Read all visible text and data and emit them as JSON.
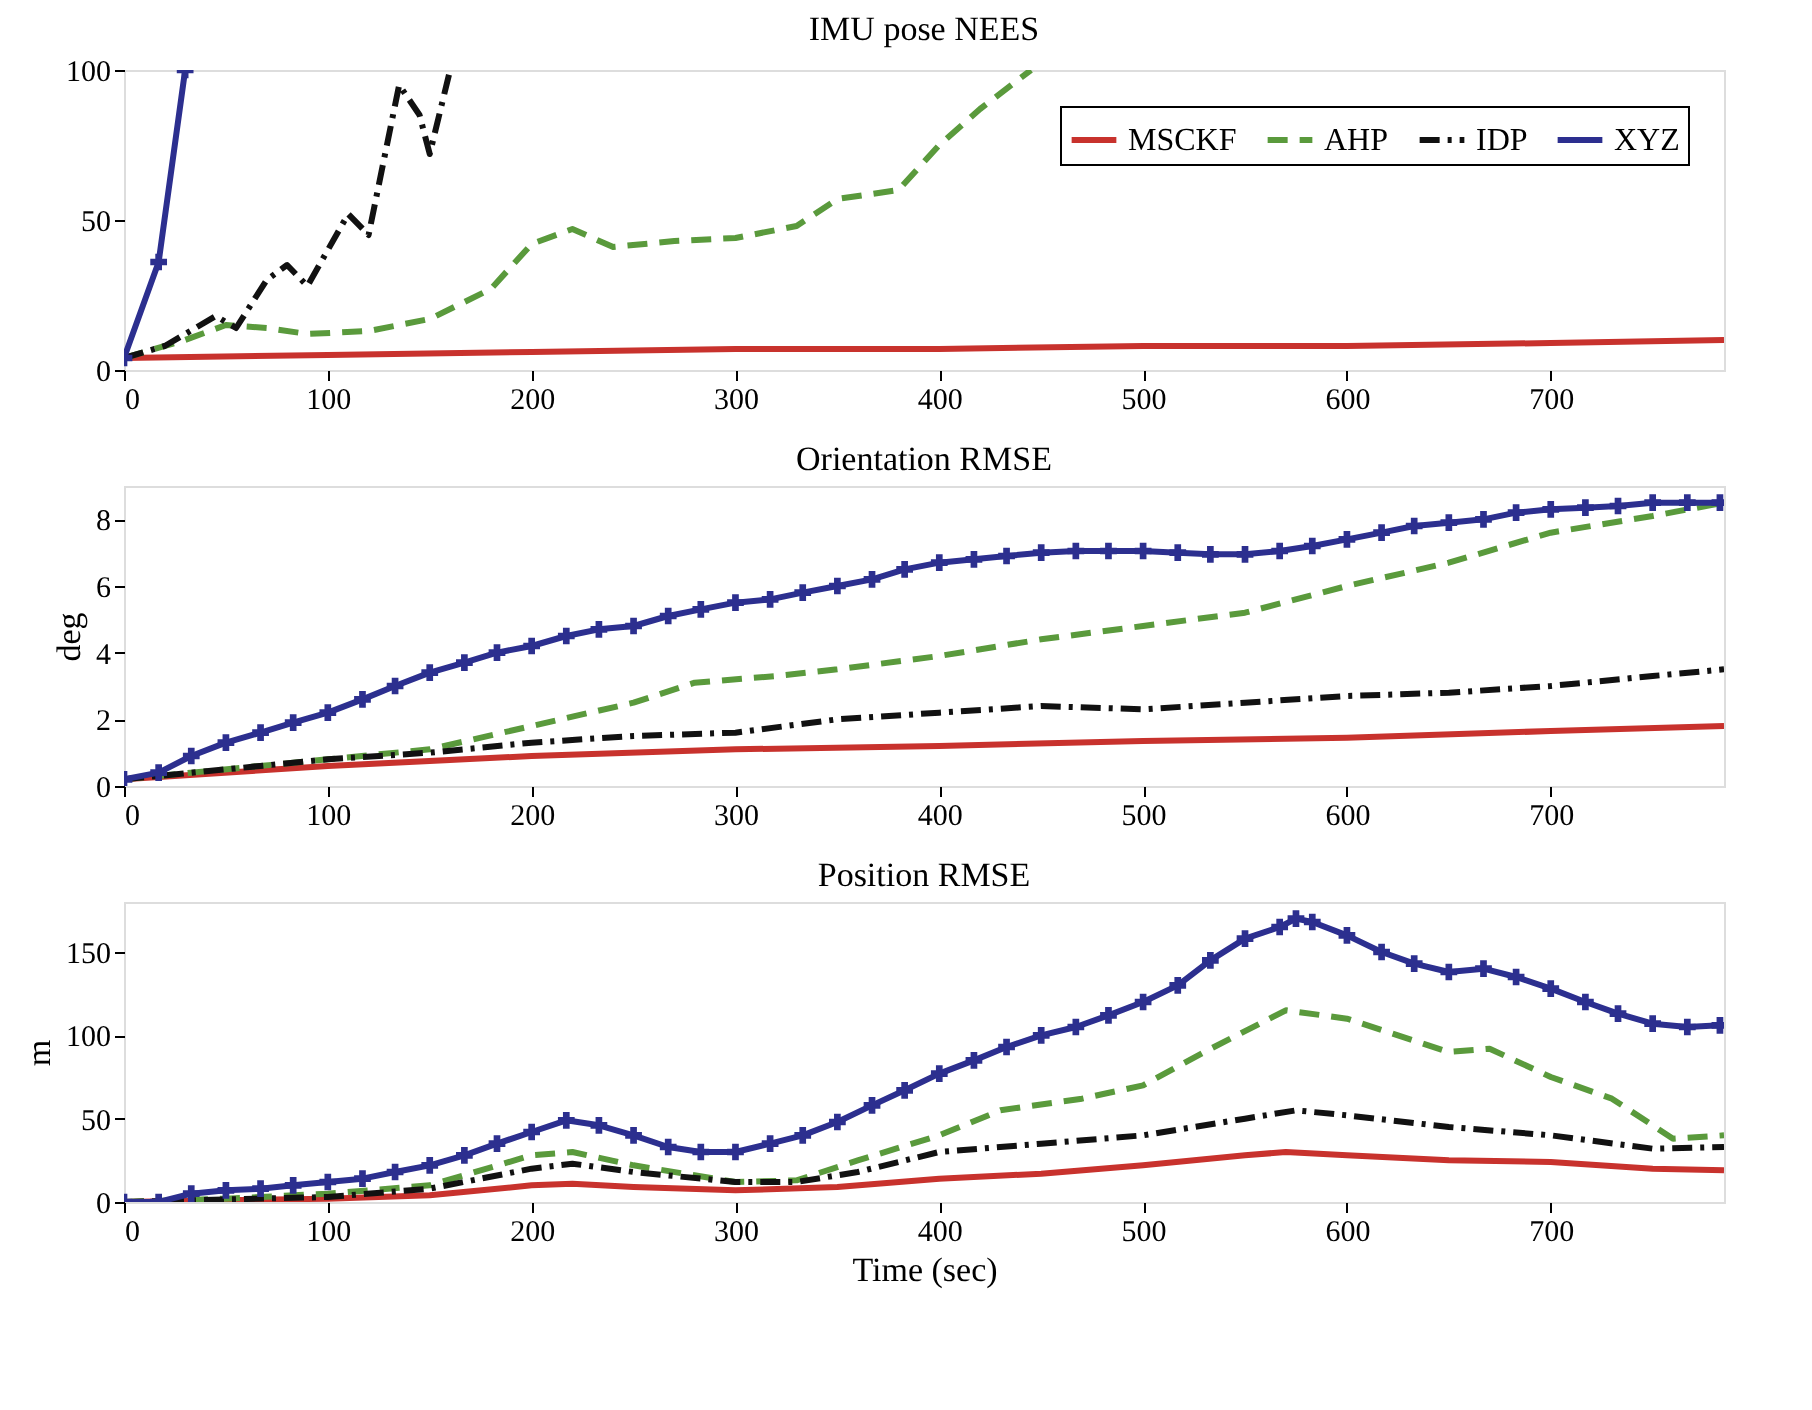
{
  "chart_data": [
    {
      "type": "line",
      "title": "IMU pose NEES",
      "xlim": [
        0,
        785
      ],
      "xticks": [
        0,
        100,
        200,
        300,
        400,
        500,
        600,
        700
      ],
      "ylim": [
        0,
        100
      ],
      "yticks": [
        0,
        50,
        100
      ],
      "legend": "top right",
      "series": [
        {
          "name": "MSCKF",
          "color": "#c8322d",
          "line_style": "solid",
          "x": [
            0,
            100,
            200,
            300,
            400,
            500,
            600,
            700,
            785
          ],
          "values": [
            4,
            5,
            6,
            7,
            7,
            8,
            8,
            9,
            10
          ]
        },
        {
          "name": "AHP",
          "color": "#5a9a3c",
          "line_style": "dashed",
          "x": [
            0,
            30,
            50,
            70,
            90,
            120,
            150,
            180,
            200,
            220,
            240,
            270,
            300,
            330,
            350,
            380,
            400,
            420,
            445
          ],
          "values": [
            4,
            10,
            15,
            14,
            12,
            13,
            17,
            27,
            42,
            47,
            41,
            43,
            44,
            48,
            57,
            60,
            75,
            87,
            100
          ]
        },
        {
          "name": "IDP",
          "color": "#111111",
          "line_style": "dashdot",
          "x": [
            0,
            20,
            45,
            55,
            70,
            80,
            90,
            110,
            120,
            135,
            145,
            150,
            160
          ],
          "values": [
            4,
            8,
            18,
            14,
            30,
            35,
            28,
            52,
            45,
            95,
            85,
            72,
            100
          ]
        },
        {
          "name": "XYZ",
          "color": "#2c2f8f",
          "line_style": "solid",
          "marker": "cross",
          "x": [
            0,
            17,
            30
          ],
          "values": [
            4,
            36,
            100
          ]
        }
      ]
    },
    {
      "type": "line",
      "title": "Orientation RMSE",
      "ylabel": "deg",
      "xlim": [
        0,
        785
      ],
      "xticks": [
        0,
        100,
        200,
        300,
        400,
        500,
        600,
        700
      ],
      "ylim": [
        0,
        9
      ],
      "yticks": [
        0,
        2,
        4,
        6,
        8
      ],
      "series": [
        {
          "color": "#c8322d",
          "line_style": "solid",
          "x": [
            0,
            100,
            200,
            300,
            400,
            500,
            600,
            700,
            785
          ],
          "values": [
            0.2,
            0.6,
            0.9,
            1.1,
            1.2,
            1.35,
            1.45,
            1.65,
            1.8
          ]
        },
        {
          "color": "#5a9a3c",
          "line_style": "dashed",
          "x": [
            0,
            100,
            150,
            200,
            250,
            280,
            320,
            350,
            400,
            450,
            500,
            550,
            600,
            650,
            700,
            750,
            785
          ],
          "values": [
            0.2,
            0.8,
            1.1,
            1.8,
            2.5,
            3.1,
            3.3,
            3.5,
            3.9,
            4.4,
            4.8,
            5.2,
            6.0,
            6.7,
            7.6,
            8.1,
            8.5
          ]
        },
        {
          "color": "#111111",
          "line_style": "dashdot",
          "x": [
            0,
            100,
            150,
            200,
            250,
            300,
            350,
            400,
            450,
            500,
            550,
            600,
            650,
            700,
            750,
            785
          ],
          "values": [
            0.2,
            0.8,
            1.0,
            1.3,
            1.5,
            1.6,
            2.0,
            2.2,
            2.4,
            2.3,
            2.5,
            2.7,
            2.8,
            3.0,
            3.3,
            3.5
          ]
        },
        {
          "color": "#2c2f8f",
          "line_style": "solid",
          "marker": "cross",
          "x": [
            0,
            17,
            33,
            50,
            67,
            83,
            100,
            117,
            133,
            150,
            167,
            183,
            200,
            217,
            233,
            250,
            267,
            283,
            300,
            317,
            333,
            350,
            367,
            383,
            400,
            417,
            433,
            450,
            467,
            483,
            500,
            517,
            533,
            550,
            567,
            583,
            600,
            617,
            633,
            650,
            667,
            683,
            700,
            717,
            733,
            750,
            767,
            783
          ],
          "values": [
            0.2,
            0.4,
            0.9,
            1.3,
            1.6,
            1.9,
            2.2,
            2.6,
            3.0,
            3.4,
            3.7,
            4.0,
            4.2,
            4.5,
            4.7,
            4.8,
            5.1,
            5.3,
            5.5,
            5.6,
            5.8,
            6.0,
            6.2,
            6.5,
            6.7,
            6.8,
            6.9,
            7.0,
            7.05,
            7.05,
            7.05,
            7.0,
            6.95,
            6.95,
            7.05,
            7.2,
            7.4,
            7.6,
            7.8,
            7.9,
            8.0,
            8.2,
            8.3,
            8.35,
            8.4,
            8.5,
            8.5,
            8.5
          ]
        }
      ]
    },
    {
      "type": "line",
      "title": "Position RMSE",
      "ylabel": "m",
      "xlabel": "Time (sec)",
      "xlim": [
        0,
        785
      ],
      "xticks": [
        0,
        100,
        200,
        300,
        400,
        500,
        600,
        700
      ],
      "ylim": [
        0,
        180
      ],
      "yticks": [
        0,
        50,
        100,
        150
      ],
      "series": [
        {
          "color": "#c8322d",
          "line_style": "solid",
          "x": [
            0,
            100,
            150,
            200,
            220,
            250,
            300,
            350,
            400,
            450,
            500,
            550,
            570,
            600,
            650,
            700,
            750,
            785
          ],
          "values": [
            0,
            2,
            4,
            10,
            11,
            9,
            7,
            9,
            14,
            17,
            22,
            28,
            30,
            28,
            25,
            24,
            20,
            19
          ]
        },
        {
          "color": "#5a9a3c",
          "line_style": "dashed",
          "x": [
            0,
            50,
            100,
            150,
            200,
            220,
            250,
            300,
            330,
            360,
            400,
            430,
            470,
            500,
            530,
            570,
            600,
            650,
            670,
            700,
            730,
            760,
            785
          ],
          "values": [
            0,
            2,
            5,
            10,
            28,
            30,
            22,
            12,
            13,
            25,
            40,
            55,
            62,
            70,
            90,
            115,
            110,
            90,
            92,
            75,
            62,
            38,
            40
          ]
        },
        {
          "color": "#111111",
          "line_style": "dashdot",
          "x": [
            0,
            100,
            150,
            200,
            220,
            250,
            300,
            330,
            360,
            400,
            450,
            500,
            550,
            575,
            600,
            650,
            700,
            750,
            785
          ],
          "values": [
            0,
            3,
            8,
            20,
            23,
            18,
            12,
            12,
            18,
            30,
            35,
            40,
            50,
            55,
            52,
            45,
            40,
            32,
            33
          ]
        },
        {
          "color": "#2c2f8f",
          "line_style": "solid",
          "marker": "cross",
          "x": [
            0,
            17,
            33,
            50,
            67,
            83,
            100,
            117,
            133,
            150,
            167,
            183,
            200,
            217,
            233,
            250,
            267,
            283,
            300,
            317,
            333,
            350,
            367,
            383,
            400,
            417,
            433,
            450,
            467,
            483,
            500,
            517,
            533,
            550,
            567,
            575,
            583,
            600,
            617,
            633,
            650,
            667,
            683,
            700,
            717,
            733,
            750,
            767,
            783
          ],
          "values": [
            0,
            0,
            5,
            7,
            8,
            10,
            12,
            14,
            18,
            22,
            28,
            35,
            42,
            49,
            46,
            40,
            33,
            30,
            30,
            35,
            40,
            48,
            58,
            67,
            77,
            85,
            93,
            100,
            105,
            112,
            120,
            130,
            145,
            158,
            165,
            170,
            168,
            160,
            150,
            143,
            138,
            140,
            135,
            128,
            120,
            113,
            107,
            105,
            106
          ]
        }
      ]
    }
  ]
}
